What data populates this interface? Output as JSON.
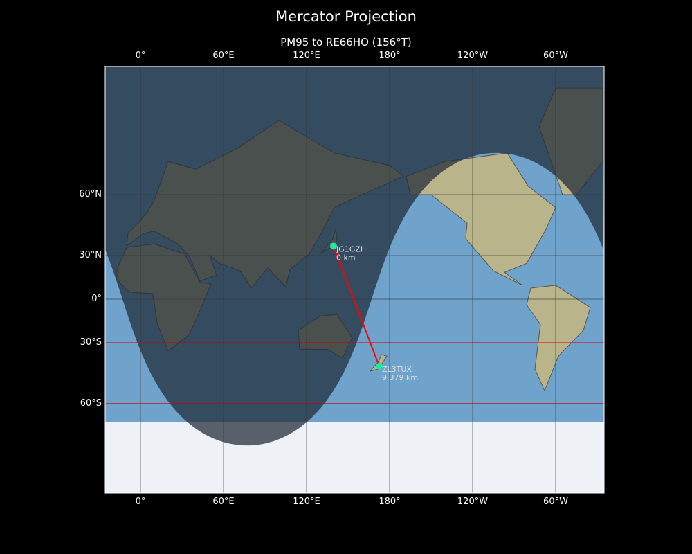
{
  "title": "Mercator Projection",
  "subtitle": "PM95 to RE66HO (156°T)",
  "lon_ticks": [
    {
      "lon": 0,
      "label": "0°"
    },
    {
      "lon": 60,
      "label": "60°E"
    },
    {
      "lon": 120,
      "label": "120°E"
    },
    {
      "lon": 180,
      "label": "180°"
    },
    {
      "lon": 240,
      "label": "120°W"
    },
    {
      "lon": 300,
      "label": "60°W"
    }
  ],
  "lat_ticks": [
    {
      "lat": 60,
      "label": "60°N"
    },
    {
      "lat": 30,
      "label": "30°N"
    },
    {
      "lat": 0,
      "label": "0°"
    },
    {
      "lat": -30,
      "label": "30°S"
    },
    {
      "lat": -60,
      "label": "60°S"
    }
  ],
  "highlight_latitudes": [
    -30,
    -60
  ],
  "stations": [
    {
      "call": "JG1GZH",
      "distance": "0 km",
      "lat": 35.7,
      "lon": 139.5
    },
    {
      "call": "ZL3TUX",
      "distance": "9,379 km",
      "lat": -43.5,
      "lon": 172.5
    }
  ],
  "night_shading": true,
  "colors": {
    "path": "#ff0000",
    "marker": "#1de9a0",
    "highlight_lat": "#cc0000",
    "ocean": "#6fa3cc",
    "night": "#1e2a36"
  }
}
